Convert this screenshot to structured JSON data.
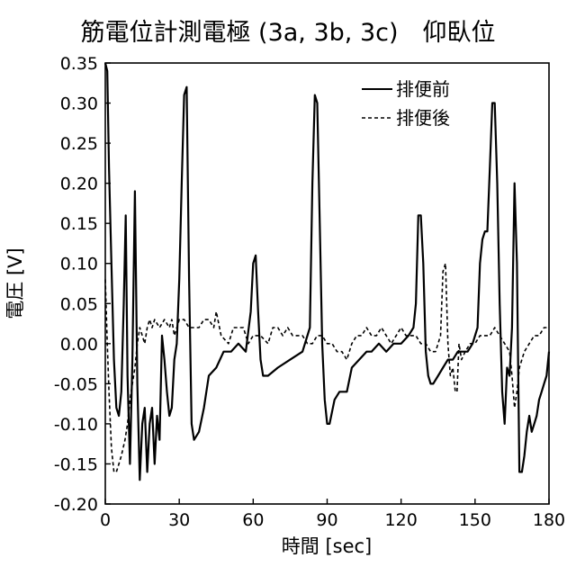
{
  "chart_data": {
    "type": "line",
    "title": "筋電位計測電極 (3a, 3b, 3c)　仰臥位",
    "xlabel": "時間 [sec]",
    "ylabel": "電圧 [V]",
    "xlim": [
      0,
      180
    ],
    "ylim": [
      -0.2,
      0.35
    ],
    "x_ticks": [
      0,
      30,
      60,
      90,
      120,
      150,
      180
    ],
    "x_tick_labels": [
      "0",
      "30",
      "60",
      "90",
      "120",
      "150",
      "180"
    ],
    "y_ticks": [
      -0.2,
      -0.15,
      -0.1,
      -0.05,
      0,
      0.05,
      0.1,
      0.15,
      0.2,
      0.25,
      0.3,
      0.35
    ],
    "y_tick_labels": [
      "-0.20",
      "-0.15",
      "-0.10",
      "-0.05",
      "0.00",
      "0.05",
      "0.10",
      "0.15",
      "0.20",
      "0.25",
      "0.30",
      "0.35"
    ],
    "grid": false,
    "legend_position": "top-right",
    "series": [
      {
        "name": "排便前",
        "style": "solid",
        "color": "#000000",
        "x": [
          0,
          0.8,
          1.5,
          2.5,
          3.5,
          4.5,
          5.5,
          6.5,
          7.5,
          8.3,
          9,
          10,
          11,
          12,
          13,
          14,
          15,
          16,
          17,
          18,
          19,
          20,
          21,
          22,
          23,
          24,
          25,
          26,
          27,
          28,
          29,
          30,
          31,
          32,
          33,
          34,
          35,
          36,
          38,
          40,
          42,
          45,
          48,
          51,
          54,
          57,
          59,
          60,
          61,
          62,
          63,
          64,
          66,
          70,
          75,
          80,
          83,
          84,
          85,
          86,
          87,
          88,
          89,
          90,
          91,
          93,
          95,
          98,
          100,
          103,
          106,
          108,
          111,
          114,
          117,
          120,
          123,
          125,
          126,
          127,
          128,
          129,
          130,
          131,
          132,
          133,
          135,
          137,
          139,
          141,
          143,
          145,
          147,
          149,
          151,
          152,
          153,
          154,
          155,
          156,
          157,
          158,
          159,
          160,
          161,
          162,
          163,
          164,
          165,
          166,
          167,
          168,
          169,
          170,
          171,
          172,
          173,
          174,
          175,
          176,
          177,
          178,
          179,
          180
        ],
        "y": [
          0.35,
          0.34,
          0.22,
          0.1,
          -0.02,
          -0.08,
          -0.09,
          -0.06,
          0.05,
          0.16,
          -0.04,
          -0.15,
          -0.02,
          0.19,
          -0.05,
          -0.17,
          -0.1,
          -0.08,
          -0.16,
          -0.1,
          -0.08,
          -0.15,
          -0.09,
          -0.12,
          0.01,
          -0.02,
          -0.06,
          -0.09,
          -0.08,
          -0.02,
          0.0,
          0.08,
          0.2,
          0.31,
          0.32,
          0.08,
          -0.1,
          -0.12,
          -0.11,
          -0.08,
          -0.04,
          -0.03,
          -0.01,
          -0.01,
          0.0,
          -0.01,
          0.04,
          0.1,
          0.11,
          0.04,
          -0.02,
          -0.04,
          -0.04,
          -0.03,
          -0.02,
          -0.01,
          0.02,
          0.2,
          0.31,
          0.3,
          0.15,
          0.0,
          -0.07,
          -0.1,
          -0.1,
          -0.07,
          -0.06,
          -0.06,
          -0.03,
          -0.02,
          -0.01,
          -0.01,
          0.0,
          -0.01,
          0.0,
          0.0,
          0.01,
          0.02,
          0.05,
          0.16,
          0.16,
          0.1,
          -0.01,
          -0.04,
          -0.05,
          -0.05,
          -0.04,
          -0.03,
          -0.02,
          -0.02,
          -0.01,
          -0.01,
          -0.01,
          0.0,
          0.02,
          0.1,
          0.13,
          0.14,
          0.14,
          0.22,
          0.3,
          0.3,
          0.2,
          0.05,
          -0.06,
          -0.1,
          -0.03,
          -0.04,
          0.02,
          0.2,
          0.1,
          -0.16,
          -0.16,
          -0.14,
          -0.11,
          -0.09,
          -0.11,
          -0.1,
          -0.09,
          -0.07,
          -0.06,
          -0.05,
          -0.04,
          -0.01
        ]
      },
      {
        "name": "排便後",
        "style": "dashed",
        "color": "#000000",
        "x": [
          0,
          0.8,
          1.5,
          2.5,
          3.5,
          4.5,
          5.5,
          6.5,
          8,
          9,
          10,
          11,
          12,
          13,
          14,
          15,
          16,
          17,
          18,
          19,
          20,
          22,
          24,
          26,
          27,
          28,
          30,
          32,
          34,
          36,
          38,
          40,
          42,
          44,
          45,
          47,
          50,
          52,
          54,
          56,
          58,
          60,
          63,
          66,
          68,
          70,
          72,
          74,
          76,
          78,
          80,
          82,
          84,
          86,
          88,
          90,
          92,
          94,
          96,
          98,
          100,
          102,
          104,
          106,
          108,
          110,
          112,
          114,
          116,
          118,
          120,
          122,
          124,
          126,
          128,
          130,
          132,
          134,
          136,
          137,
          138,
          139,
          140,
          141,
          142,
          142.7,
          143.5,
          144.5,
          146,
          148,
          150,
          152,
          154,
          156,
          158,
          160,
          162,
          164,
          165,
          166,
          167,
          168,
          170,
          172,
          174,
          176,
          178,
          180
        ],
        "y": [
          0.08,
          0.0,
          -0.06,
          -0.13,
          -0.16,
          -0.16,
          -0.15,
          -0.14,
          -0.12,
          -0.1,
          -0.07,
          -0.05,
          -0.03,
          0.0,
          0.02,
          0.01,
          0.0,
          0.02,
          0.03,
          0.02,
          0.03,
          0.02,
          0.03,
          0.02,
          0.03,
          0.01,
          0.03,
          0.03,
          0.02,
          0.02,
          0.02,
          0.03,
          0.03,
          0.02,
          0.04,
          0.01,
          0.0,
          0.02,
          0.02,
          0.02,
          0.0,
          0.01,
          0.01,
          0.0,
          0.02,
          0.02,
          0.01,
          0.02,
          0.01,
          0.01,
          0.01,
          0.0,
          0.0,
          0.01,
          0.01,
          0.0,
          0.0,
          -0.01,
          -0.01,
          -0.02,
          0.0,
          0.01,
          0.01,
          0.02,
          0.01,
          0.01,
          0.02,
          0.01,
          0.0,
          0.01,
          0.02,
          0.01,
          0.01,
          0.01,
          0.0,
          0.0,
          -0.01,
          -0.01,
          0.01,
          0.09,
          0.1,
          0.0,
          -0.04,
          -0.03,
          -0.06,
          -0.06,
          0.0,
          -0.02,
          -0.01,
          0.0,
          0.0,
          0.01,
          0.01,
          0.01,
          0.02,
          0.01,
          0.0,
          -0.01,
          -0.04,
          -0.08,
          -0.06,
          -0.03,
          -0.01,
          0.0,
          0.01,
          0.01,
          0.02,
          0.02
        ]
      }
    ]
  }
}
